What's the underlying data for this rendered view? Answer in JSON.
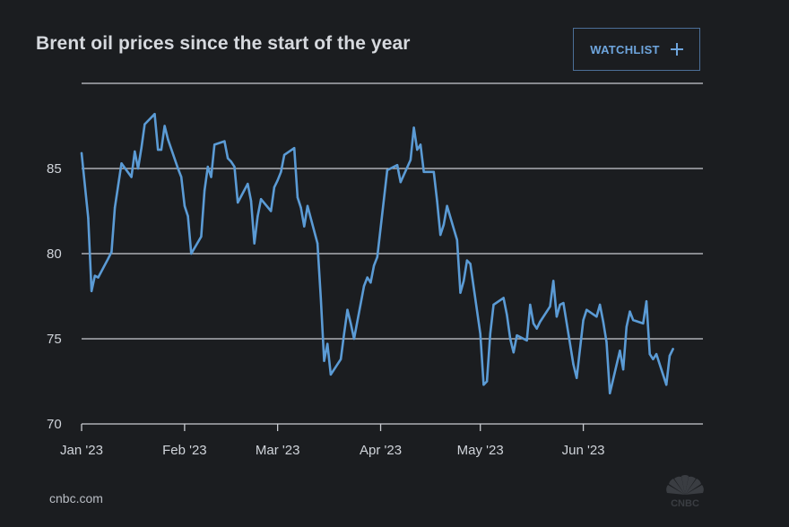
{
  "header": {
    "title": "Brent oil prices since the start of the year",
    "watchlist_label": "WATCHLIST"
  },
  "footer": {
    "source": "cnbc.com",
    "logo_text": "CNBC"
  },
  "colors": {
    "background": "#1b1d20",
    "line": "#5b9bd5",
    "grid": "#c9ccd1",
    "accent": "#6ea5dd"
  },
  "icons": {
    "watchlist_add": "plus-icon",
    "brand": "peacock-logo-icon"
  },
  "chart_data": {
    "type": "line",
    "title": "Brent oil prices since the start of the year",
    "xlabel": "",
    "ylabel": "",
    "x_start": "2023-01-01",
    "x_end": "2023-07-07",
    "ylim": [
      70,
      90
    ],
    "yticks": [
      70,
      75,
      80,
      85
    ],
    "ytick_labels": [
      "70",
      "75",
      "80",
      "85"
    ],
    "xticks": [
      "2023-01-01",
      "2023-02-01",
      "2023-03-01",
      "2023-04-01",
      "2023-05-01",
      "2023-06-01"
    ],
    "xtick_labels": [
      "Jan '23",
      "Feb '23",
      "Mar '23",
      "Apr '23",
      "May '23",
      "Jun '23"
    ],
    "grid": true,
    "legend": "none",
    "series": [
      {
        "points": [
          [
            "2023-01-01",
            85.9
          ],
          [
            "2023-01-03",
            82.1
          ],
          [
            "2023-01-04",
            77.8
          ],
          [
            "2023-01-05",
            78.7
          ],
          [
            "2023-01-06",
            78.6
          ],
          [
            "2023-01-09",
            79.7
          ],
          [
            "2023-01-10",
            80.1
          ],
          [
            "2023-01-11",
            82.7
          ],
          [
            "2023-01-12",
            84.0
          ],
          [
            "2023-01-13",
            85.3
          ],
          [
            "2023-01-16",
            84.5
          ],
          [
            "2023-01-17",
            86.0
          ],
          [
            "2023-01-18",
            85.0
          ],
          [
            "2023-01-19",
            86.2
          ],
          [
            "2023-01-20",
            87.6
          ],
          [
            "2023-01-23",
            88.2
          ],
          [
            "2023-01-24",
            86.1
          ],
          [
            "2023-01-25",
            86.1
          ],
          [
            "2023-01-26",
            87.5
          ],
          [
            "2023-01-27",
            86.7
          ],
          [
            "2023-01-30",
            85.0
          ],
          [
            "2023-01-31",
            84.5
          ],
          [
            "2023-02-01",
            82.8
          ],
          [
            "2023-02-02",
            82.2
          ],
          [
            "2023-02-03",
            80.0
          ],
          [
            "2023-02-06",
            81.0
          ],
          [
            "2023-02-07",
            83.7
          ],
          [
            "2023-02-08",
            85.1
          ],
          [
            "2023-02-09",
            84.5
          ],
          [
            "2023-02-10",
            86.4
          ],
          [
            "2023-02-13",
            86.6
          ],
          [
            "2023-02-14",
            85.6
          ],
          [
            "2023-02-15",
            85.4
          ],
          [
            "2023-02-16",
            85.1
          ],
          [
            "2023-02-17",
            83.0
          ],
          [
            "2023-02-20",
            84.1
          ],
          [
            "2023-02-21",
            83.1
          ],
          [
            "2023-02-22",
            80.6
          ],
          [
            "2023-02-23",
            82.2
          ],
          [
            "2023-02-24",
            83.2
          ],
          [
            "2023-02-27",
            82.5
          ],
          [
            "2023-02-28",
            83.9
          ],
          [
            "2023-03-01",
            84.3
          ],
          [
            "2023-03-02",
            84.8
          ],
          [
            "2023-03-03",
            85.8
          ],
          [
            "2023-03-06",
            86.2
          ],
          [
            "2023-03-07",
            83.3
          ],
          [
            "2023-03-08",
            82.7
          ],
          [
            "2023-03-09",
            81.6
          ],
          [
            "2023-03-10",
            82.8
          ],
          [
            "2023-03-13",
            80.6
          ],
          [
            "2023-03-14",
            77.4
          ],
          [
            "2023-03-15",
            73.7
          ],
          [
            "2023-03-16",
            74.7
          ],
          [
            "2023-03-17",
            72.9
          ],
          [
            "2023-03-20",
            73.8
          ],
          [
            "2023-03-21",
            75.3
          ],
          [
            "2023-03-22",
            76.7
          ],
          [
            "2023-03-23",
            75.9
          ],
          [
            "2023-03-24",
            75.0
          ],
          [
            "2023-03-27",
            78.1
          ],
          [
            "2023-03-28",
            78.6
          ],
          [
            "2023-03-29",
            78.3
          ],
          [
            "2023-03-30",
            79.3
          ],
          [
            "2023-03-31",
            79.8
          ],
          [
            "2023-04-03",
            84.9
          ],
          [
            "2023-04-04",
            85.0
          ],
          [
            "2023-04-05",
            85.1
          ],
          [
            "2023-04-06",
            85.2
          ],
          [
            "2023-04-07",
            84.2
          ],
          [
            "2023-04-10",
            85.5
          ],
          [
            "2023-04-11",
            87.4
          ],
          [
            "2023-04-12",
            86.1
          ],
          [
            "2023-04-13",
            86.4
          ],
          [
            "2023-04-14",
            84.8
          ],
          [
            "2023-04-17",
            84.8
          ],
          [
            "2023-04-18",
            83.1
          ],
          [
            "2023-04-19",
            81.1
          ],
          [
            "2023-04-20",
            81.7
          ],
          [
            "2023-04-21",
            82.8
          ],
          [
            "2023-04-24",
            80.8
          ],
          [
            "2023-04-25",
            77.7
          ],
          [
            "2023-04-26",
            78.4
          ],
          [
            "2023-04-27",
            79.6
          ],
          [
            "2023-04-28",
            79.4
          ],
          [
            "2023-05-01",
            75.3
          ],
          [
            "2023-05-02",
            72.3
          ],
          [
            "2023-05-03",
            72.5
          ],
          [
            "2023-05-04",
            75.3
          ],
          [
            "2023-05-05",
            77.0
          ],
          [
            "2023-05-08",
            77.4
          ],
          [
            "2023-05-09",
            76.4
          ],
          [
            "2023-05-10",
            75.0
          ],
          [
            "2023-05-11",
            74.2
          ],
          [
            "2023-05-12",
            75.2
          ],
          [
            "2023-05-15",
            74.9
          ],
          [
            "2023-05-16",
            77.0
          ],
          [
            "2023-05-17",
            75.9
          ],
          [
            "2023-05-18",
            75.6
          ],
          [
            "2023-05-19",
            76.0
          ],
          [
            "2023-05-22",
            76.9
          ],
          [
            "2023-05-23",
            78.4
          ],
          [
            "2023-05-24",
            76.3
          ],
          [
            "2023-05-25",
            77.0
          ],
          [
            "2023-05-26",
            77.1
          ],
          [
            "2023-05-29",
            73.5
          ],
          [
            "2023-05-30",
            72.7
          ],
          [
            "2023-05-31",
            74.4
          ],
          [
            "2023-06-01",
            76.1
          ],
          [
            "2023-06-02",
            76.7
          ],
          [
            "2023-06-05",
            76.3
          ],
          [
            "2023-06-06",
            77.0
          ],
          [
            "2023-06-07",
            76.0
          ],
          [
            "2023-06-08",
            74.8
          ],
          [
            "2023-06-09",
            71.8
          ],
          [
            "2023-06-12",
            74.3
          ],
          [
            "2023-06-13",
            73.2
          ],
          [
            "2023-06-14",
            75.7
          ],
          [
            "2023-06-15",
            76.6
          ],
          [
            "2023-06-16",
            76.1
          ],
          [
            "2023-06-19",
            75.9
          ],
          [
            "2023-06-20",
            77.2
          ],
          [
            "2023-06-21",
            74.1
          ],
          [
            "2023-06-22",
            73.8
          ],
          [
            "2023-06-23",
            74.1
          ],
          [
            "2023-06-26",
            72.3
          ],
          [
            "2023-06-27",
            74.0
          ],
          [
            "2023-06-28",
            74.4
          ]
        ]
      }
    ]
  }
}
